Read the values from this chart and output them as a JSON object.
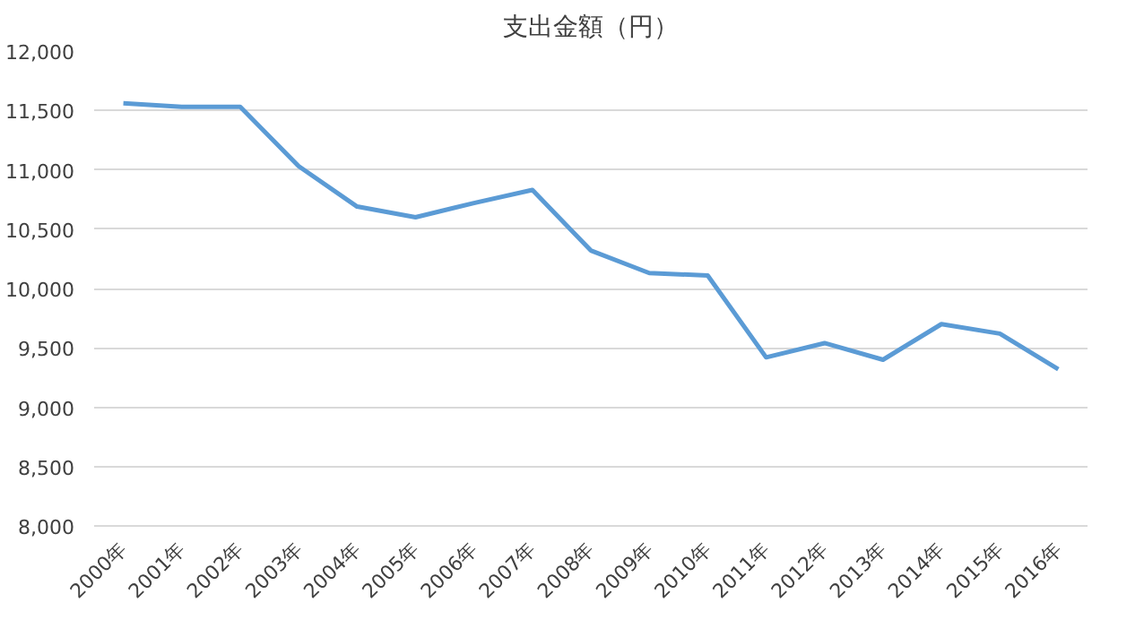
{
  "chart_data": {
    "type": "line",
    "title": "支出金額（円）",
    "categories": [
      "2000年",
      "2001年",
      "2002年",
      "2003年",
      "2004年",
      "2005年",
      "2006年",
      "2007年",
      "2008年",
      "2009年",
      "2010年",
      "2011年",
      "2012年",
      "2013年",
      "2014年",
      "2015年",
      "2016年"
    ],
    "series": [
      {
        "color": "#5b9bd5",
        "values": [
          11560,
          11530,
          11530,
          11030,
          10690,
          10600,
          10720,
          10830,
          10320,
          10130,
          10110,
          9420,
          9540,
          9400,
          9700,
          9620,
          9320
        ]
      }
    ],
    "ylim": [
      8000,
      12000
    ],
    "yticks": [
      {
        "value": 8000,
        "label": "8,000"
      },
      {
        "value": 8500,
        "label": "8,500"
      },
      {
        "value": 9000,
        "label": "9,000"
      },
      {
        "value": 9500,
        "label": "9,500"
      },
      {
        "value": 10000,
        "label": "10,000"
      },
      {
        "value": 10500,
        "label": "10,500"
      },
      {
        "value": 11000,
        "label": "11,000"
      },
      {
        "value": 11500,
        "label": "11,500"
      },
      {
        "value": 12000,
        "label": "12,000"
      }
    ],
    "grid": "y",
    "marker": "none",
    "line_style": "solid"
  }
}
